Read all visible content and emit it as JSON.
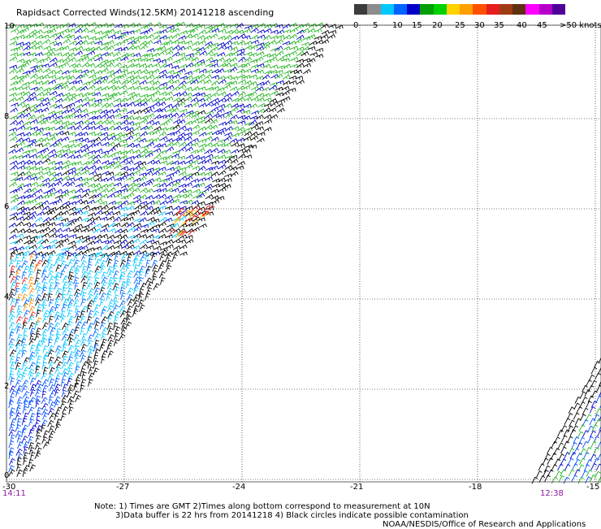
{
  "title": "Rapidsact Corrected Winds(12.5KM) 20141218 ascending",
  "legend": {
    "units_label": ">50 knots",
    "ticks": [
      "0",
      "5",
      "10",
      "15",
      "20",
      "25",
      "30",
      "35",
      "40",
      "45"
    ],
    "colors": [
      "#3c3c3c",
      "#8c8c8c",
      "#00c8ff",
      "#0064ff",
      "#0000c8",
      "#00a000",
      "#00d200",
      "#ffd200",
      "#ffa000",
      "#ff5000",
      "#e61e1e",
      "#a03c14",
      "#603010",
      "#ff00ff",
      "#b400c8",
      "#50009a"
    ]
  },
  "map": {
    "lat_labels": [
      "10",
      "8",
      "6",
      "4",
      "2",
      "0"
    ],
    "lon_labels": [
      "-30",
      "-27",
      "-24",
      "-21",
      "-18",
      "-15"
    ],
    "time_left": "14:11",
    "time_right": "12:38"
  },
  "notes": {
    "line1": "Note: 1) Times are GMT 2)Times along bottom correspond to measurement at 10N",
    "line2": "3)Data buffer is 22 hrs from 20141218 4) Black circles indicate possible contamination",
    "credit": "NOAA/NESDIS/Office of Research and Applications"
  }
}
